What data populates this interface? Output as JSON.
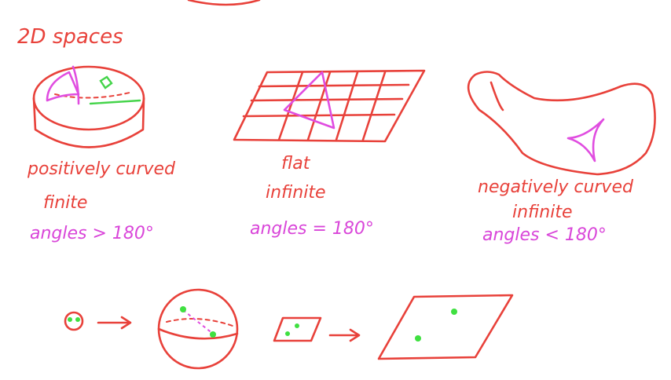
{
  "colors": {
    "ink_red": "#e8413a",
    "ink_pink": "#d946d9",
    "ink_green": "#3fe040",
    "background": "#ffffff"
  },
  "heading": "2D spaces",
  "panels": [
    {
      "caption": "positively curved",
      "size": "finite",
      "angles": "angles > 180°"
    },
    {
      "caption": "flat",
      "size": "infinite",
      "angles": "angles = 180°"
    },
    {
      "caption": "negatively curved",
      "size": "infinite",
      "angles": "angles < 180°"
    }
  ]
}
